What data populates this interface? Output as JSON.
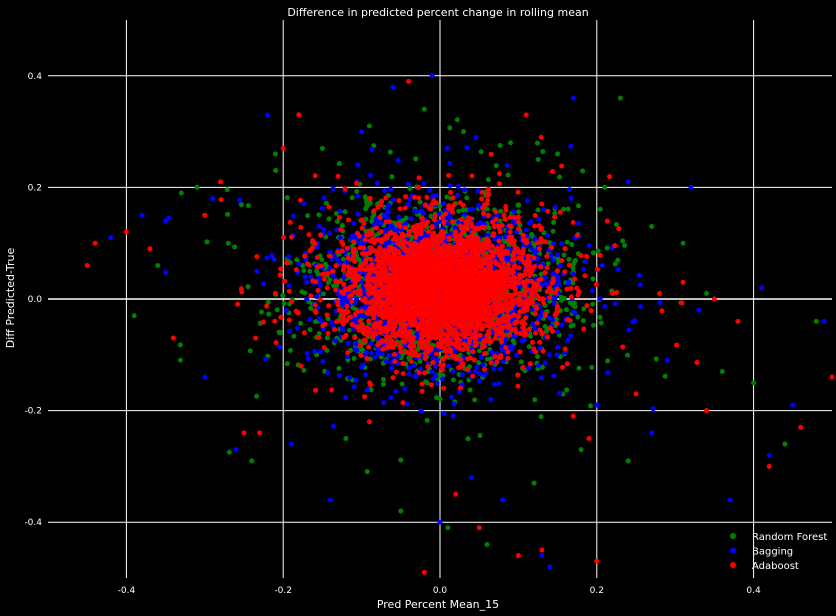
{
  "chart_data": {
    "type": "scatter",
    "title": "Difference in predicted percent change in rolling mean",
    "xlabel": "Pred Percent Mean_15",
    "ylabel": "Diff Predicted-True",
    "xlim": [
      -0.5,
      0.5
    ],
    "ylim": [
      -0.5,
      0.5
    ],
    "xticks": [
      -0.4,
      -0.2,
      0.0,
      0.2,
      0.4
    ],
    "yticks": [
      -0.4,
      -0.2,
      0.0,
      0.2,
      0.4
    ],
    "xtick_labels": [
      "-0.4",
      "-0.2",
      "0.0",
      "0.2",
      "0.4"
    ],
    "ytick_labels": [
      "-0.4",
      "-0.2",
      "0.0",
      "0.2",
      "0.4"
    ],
    "grid": true,
    "legend_position": "bottom-right",
    "background": "#000000",
    "center_x": 0.0,
    "center_y": 0.02,
    "series": [
      {
        "name": "Random Forest",
        "color": "#008000",
        "points": [
          [
            -0.36,
            0.06
          ],
          [
            -0.33,
            0.19
          ],
          [
            -0.31,
            0.2
          ],
          [
            -0.27,
            0.1
          ],
          [
            -0.24,
            -0.29
          ],
          [
            -0.21,
            0.26
          ],
          [
            -0.18,
            0.33
          ],
          [
            -0.15,
            0.27
          ],
          [
            -0.12,
            -0.25
          ],
          [
            -0.09,
            0.31
          ],
          [
            -0.05,
            -0.38
          ],
          [
            -0.02,
            0.34
          ],
          [
            0.01,
            -0.41
          ],
          [
            0.03,
            0.3
          ],
          [
            0.06,
            -0.44
          ],
          [
            0.09,
            0.28
          ],
          [
            0.12,
            -0.33
          ],
          [
            0.15,
            0.26
          ],
          [
            0.18,
            -0.27
          ],
          [
            0.21,
            0.2
          ],
          [
            0.24,
            -0.29
          ],
          [
            0.27,
            0.13
          ],
          [
            0.31,
            0.1
          ],
          [
            0.36,
            -0.13
          ],
          [
            0.4,
            -0.15
          ],
          [
            0.44,
            -0.26
          ],
          [
            0.48,
            -0.04
          ],
          [
            0.23,
            0.36
          ],
          [
            -0.39,
            -0.03
          ],
          [
            0.34,
            0.01
          ]
        ]
      },
      {
        "name": "Bagging",
        "color": "#0000ff",
        "points": [
          [
            -0.42,
            0.11
          ],
          [
            -0.38,
            0.15
          ],
          [
            -0.35,
            0.14
          ],
          [
            -0.3,
            -0.14
          ],
          [
            -0.26,
            -0.27
          ],
          [
            -0.22,
            0.33
          ],
          [
            -0.19,
            -0.26
          ],
          [
            -0.14,
            -0.36
          ],
          [
            -0.1,
            0.3
          ],
          [
            -0.06,
            0.38
          ],
          [
            -0.01,
            0.4
          ],
          [
            0.0,
            -0.4
          ],
          [
            0.04,
            -0.32
          ],
          [
            0.08,
            -0.36
          ],
          [
            0.13,
            -0.46
          ],
          [
            0.17,
            0.36
          ],
          [
            0.2,
            -0.19
          ],
          [
            0.24,
            0.21
          ],
          [
            0.29,
            -0.11
          ],
          [
            0.33,
            -0.02
          ],
          [
            0.37,
            -0.36
          ],
          [
            0.41,
            0.02
          ],
          [
            0.45,
            -0.19
          ],
          [
            0.49,
            -0.04
          ],
          [
            0.14,
            -0.48
          ],
          [
            -0.29,
            0.18
          ],
          [
            0.32,
            0.2
          ],
          [
            0.42,
            -0.28
          ],
          [
            -0.17,
            0.0
          ],
          [
            0.27,
            -0.24
          ]
        ]
      },
      {
        "name": "Adaboost",
        "color": "#ff0000",
        "points": [
          [
            -0.45,
            0.06
          ],
          [
            -0.44,
            0.1
          ],
          [
            -0.4,
            0.12
          ],
          [
            -0.37,
            0.09
          ],
          [
            -0.34,
            -0.07
          ],
          [
            -0.3,
            0.15
          ],
          [
            -0.28,
            0.21
          ],
          [
            -0.25,
            -0.24
          ],
          [
            -0.23,
            -0.24
          ],
          [
            -0.2,
            0.27
          ],
          [
            -0.18,
            0.33
          ],
          [
            -0.13,
            0.22
          ],
          [
            -0.09,
            -0.22
          ],
          [
            -0.04,
            0.39
          ],
          [
            -0.02,
            -0.49
          ],
          [
            0.02,
            -0.35
          ],
          [
            0.05,
            -0.41
          ],
          [
            0.1,
            -0.46
          ],
          [
            0.13,
            -0.45
          ],
          [
            0.17,
            -0.21
          ],
          [
            0.19,
            -0.25
          ],
          [
            0.22,
            0.01
          ],
          [
            0.25,
            -0.17
          ],
          [
            0.28,
            0.01
          ],
          [
            0.31,
            0.03
          ],
          [
            0.35,
            0.0
          ],
          [
            0.38,
            -0.04
          ],
          [
            0.42,
            -0.3
          ],
          [
            0.46,
            -0.23
          ],
          [
            0.5,
            -0.14
          ],
          [
            0.34,
            -0.2
          ],
          [
            0.2,
            -0.47
          ],
          [
            -0.21,
            0.01
          ],
          [
            0.11,
            0.33
          ]
        ]
      }
    ]
  }
}
